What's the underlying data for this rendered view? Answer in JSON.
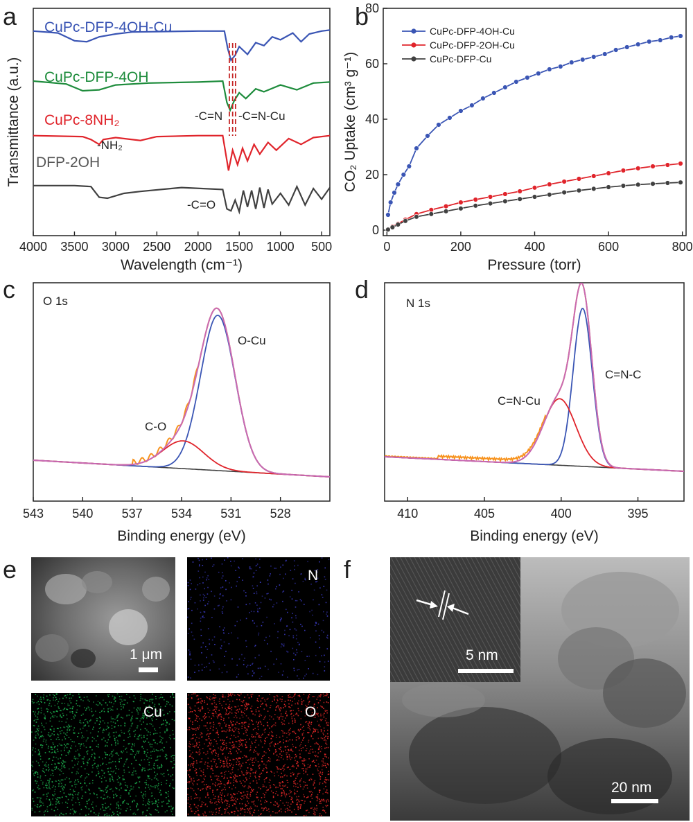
{
  "panel_letters": {
    "a": "a",
    "b": "b",
    "c": "c",
    "d": "d",
    "e": "e",
    "f": "f"
  },
  "colors": {
    "blue": "#3a55b4",
    "green": "#1e8c3c",
    "red": "#e0242b",
    "black": "#404040",
    "orange": "#f7931e",
    "magenta": "#c86ab4"
  },
  "chart_data": [
    {
      "panel": "a",
      "type": "line",
      "xlabel": "Wavelength (cm⁻¹)",
      "ylabel": "Transmittance (a.u.)",
      "xlim": [
        4000,
        400
      ],
      "xticks": [
        4000,
        3500,
        3000,
        2500,
        2000,
        1500,
        1000,
        500
      ],
      "series": [
        {
          "name": "CuPc-DFP-4OH-Cu",
          "color": "#3a55b4",
          "baseline": 0.9,
          "points": [
            [
              4000,
              0
            ],
            [
              3700,
              -0.2
            ],
            [
              3500,
              -1.0
            ],
            [
              3350,
              -1.1
            ],
            [
              3200,
              -0.6
            ],
            [
              3000,
              -0.3
            ],
            [
              2800,
              -0.1
            ],
            [
              2000,
              0
            ],
            [
              1680,
              0
            ],
            [
              1640,
              -1.8
            ],
            [
              1600,
              -3.0
            ],
            [
              1550,
              -2.5
            ],
            [
              1500,
              -1.6
            ],
            [
              1400,
              -2.4
            ],
            [
              1300,
              -1.2
            ],
            [
              1200,
              -1.5
            ],
            [
              1100,
              -0.6
            ],
            [
              1000,
              -0.9
            ],
            [
              850,
              -0.2
            ],
            [
              750,
              -1.1
            ],
            [
              650,
              -0.3
            ],
            [
              500,
              0
            ],
            [
              400,
              0.1
            ]
          ]
        },
        {
          "name": "CuPc-DFP-4OH",
          "color": "#1e8c3c",
          "baseline": 0.68,
          "points": [
            [
              4000,
              0
            ],
            [
              3600,
              -0.3
            ],
            [
              3400,
              -1.0
            ],
            [
              3200,
              -0.9
            ],
            [
              3000,
              -0.4
            ],
            [
              2600,
              -0.2
            ],
            [
              2000,
              -0.1
            ],
            [
              1700,
              0
            ],
            [
              1650,
              -2.2
            ],
            [
              1610,
              -3.0
            ],
            [
              1560,
              -2.0
            ],
            [
              1500,
              -1.2
            ],
            [
              1420,
              -1.8
            ],
            [
              1300,
              -0.8
            ],
            [
              1200,
              -1.1
            ],
            [
              1000,
              -0.4
            ],
            [
              800,
              -0.9
            ],
            [
              600,
              -0.2
            ],
            [
              400,
              -0.1
            ]
          ]
        },
        {
          "name": "CuPc-8NH₂",
          "color": "#e0242b",
          "baseline": 0.44,
          "points": [
            [
              4000,
              0
            ],
            [
              3400,
              -0.1
            ],
            [
              3300,
              -0.4
            ],
            [
              3200,
              -0.9
            ],
            [
              3150,
              -0.4
            ],
            [
              3000,
              -0.2
            ],
            [
              2700,
              -0.5
            ],
            [
              2500,
              -0.1
            ],
            [
              2000,
              0
            ],
            [
              1700,
              0
            ],
            [
              1630,
              -3.6
            ],
            [
              1580,
              -1.5
            ],
            [
              1520,
              -3.0
            ],
            [
              1460,
              -1.3
            ],
            [
              1400,
              -2.6
            ],
            [
              1320,
              -0.9
            ],
            [
              1250,
              -1.9
            ],
            [
              1150,
              -0.7
            ],
            [
              1050,
              -1.5
            ],
            [
              900,
              -0.3
            ],
            [
              750,
              -0.9
            ],
            [
              600,
              -0.2
            ],
            [
              400,
              0
            ]
          ]
        },
        {
          "name": "DFP-2OH",
          "color": "#404040",
          "baseline": 0.22,
          "points": [
            [
              4000,
              0
            ],
            [
              3500,
              0
            ],
            [
              3300,
              -0.1
            ],
            [
              3200,
              -1.2
            ],
            [
              3100,
              -1.3
            ],
            [
              2900,
              -0.8
            ],
            [
              2700,
              -0.6
            ],
            [
              2200,
              -0.2
            ],
            [
              1700,
              -0.4
            ],
            [
              1650,
              -2.4
            ],
            [
              1600,
              -2.6
            ],
            [
              1550,
              -1.5
            ],
            [
              1500,
              -2.7
            ],
            [
              1450,
              -0.5
            ],
            [
              1400,
              -2.2
            ],
            [
              1350,
              -0.5
            ],
            [
              1300,
              -2.4
            ],
            [
              1250,
              -0.2
            ],
            [
              1200,
              -2.3
            ],
            [
              1150,
              -0.4
            ],
            [
              1100,
              -1.9
            ],
            [
              1000,
              -0.8
            ],
            [
              900,
              -2.0
            ],
            [
              800,
              -0.1
            ],
            [
              700,
              -2.0
            ],
            [
              600,
              -0.3
            ],
            [
              500,
              -1.4
            ],
            [
              400,
              -0.2
            ]
          ]
        }
      ],
      "dashed_marks": [
        1620,
        1580,
        1545
      ],
      "annotations": {
        "c_n": "-C=N",
        "c_n_cu": "-C=N-Cu",
        "nh2": "-NH₂",
        "c_o": "-C=O"
      }
    },
    {
      "panel": "b",
      "type": "line",
      "xlabel": "Pressure (torr)",
      "ylabel": "CO₂ Uptake (cm³ g⁻¹)",
      "xlim": [
        -10,
        810
      ],
      "ylim": [
        -2,
        80
      ],
      "xticks": [
        0,
        200,
        400,
        600,
        800
      ],
      "yticks": [
        0,
        20,
        40,
        60,
        80
      ],
      "legend": "top-left",
      "series": [
        {
          "name": "CuPc-DFP-4OH-Cu",
          "color": "#3a55b4",
          "points": [
            [
              3,
              5.5
            ],
            [
              10,
              10
            ],
            [
              20,
              13.5
            ],
            [
              30,
              16.5
            ],
            [
              45,
              20
            ],
            [
              60,
              23
            ],
            [
              80,
              29.5
            ],
            [
              110,
              34
            ],
            [
              140,
              38
            ],
            [
              170,
              40.5
            ],
            [
              200,
              43
            ],
            [
              230,
              45
            ],
            [
              260,
              47.5
            ],
            [
              290,
              49.5
            ],
            [
              320,
              51.5
            ],
            [
              350,
              53.5
            ],
            [
              380,
              55
            ],
            [
              410,
              56.5
            ],
            [
              440,
              58
            ],
            [
              470,
              59
            ],
            [
              500,
              60.5
            ],
            [
              530,
              61.5
            ],
            [
              560,
              62.5
            ],
            [
              590,
              63.5
            ],
            [
              620,
              65
            ],
            [
              650,
              66
            ],
            [
              680,
              67
            ],
            [
              710,
              68
            ],
            [
              740,
              68.5
            ],
            [
              770,
              69.5
            ],
            [
              795,
              70
            ]
          ]
        },
        {
          "name": "CuPc-DFP-2OH-Cu",
          "color": "#e0242b",
          "points": [
            [
              3,
              0.3
            ],
            [
              15,
              1.3
            ],
            [
              30,
              2.3
            ],
            [
              50,
              3.8
            ],
            [
              80,
              5.8
            ],
            [
              120,
              7.3
            ],
            [
              160,
              8.6
            ],
            [
              200,
              10
            ],
            [
              240,
              11
            ],
            [
              280,
              12
            ],
            [
              320,
              13
            ],
            [
              360,
              14
            ],
            [
              400,
              15.3
            ],
            [
              440,
              16.5
            ],
            [
              480,
              17.5
            ],
            [
              520,
              18.5
            ],
            [
              560,
              19.5
            ],
            [
              600,
              20.5
            ],
            [
              640,
              21.5
            ],
            [
              680,
              22.3
            ],
            [
              720,
              23
            ],
            [
              760,
              23.5
            ],
            [
              795,
              24
            ]
          ]
        },
        {
          "name": "CuPc-DFP-Cu",
          "color": "#404040",
          "points": [
            [
              3,
              0.2
            ],
            [
              15,
              1
            ],
            [
              30,
              2
            ],
            [
              50,
              3.3
            ],
            [
              80,
              4.8
            ],
            [
              120,
              5.8
            ],
            [
              160,
              6.8
            ],
            [
              200,
              7.8
            ],
            [
              240,
              8.8
            ],
            [
              280,
              9.6
            ],
            [
              320,
              10.4
            ],
            [
              360,
              11.2
            ],
            [
              400,
              12
            ],
            [
              440,
              12.8
            ],
            [
              480,
              13.6
            ],
            [
              520,
              14.3
            ],
            [
              560,
              14.9
            ],
            [
              600,
              15.5
            ],
            [
              640,
              16
            ],
            [
              680,
              16.4
            ],
            [
              720,
              16.7
            ],
            [
              760,
              17
            ],
            [
              795,
              17.2
            ]
          ]
        }
      ]
    },
    {
      "panel": "c",
      "type": "line",
      "title": "O 1s",
      "xlabel": "Binding energy (eV)",
      "xlim": [
        543,
        525
      ],
      "xticks": [
        543,
        540,
        537,
        534,
        531,
        528
      ],
      "peaks": {
        "o_cu": {
          "label": "O-Cu",
          "center": 531.8
        },
        "c_o": {
          "label": "C-O",
          "center": 533.9
        }
      }
    },
    {
      "panel": "d",
      "type": "line",
      "title": "N 1s",
      "xlabel": "Binding energy (eV)",
      "xlim": [
        411.5,
        392
      ],
      "xticks": [
        410,
        405,
        400,
        395
      ],
      "peaks": {
        "c_n_c": {
          "label": "C=N-C",
          "center": 398.6
        },
        "c_n_cu": {
          "label": "C=N-Cu",
          "center": 400.1
        }
      }
    }
  ],
  "panel_e": {
    "maps": [
      {
        "label": "N",
        "color": "#3c3cc8"
      },
      {
        "label": "Cu",
        "color": "#1eb450"
      },
      {
        "label": "O",
        "color": "#e62828"
      }
    ],
    "scale": "1 μm"
  },
  "panel_f": {
    "inset_scale": "5 nm",
    "main_scale": "20 nm"
  }
}
